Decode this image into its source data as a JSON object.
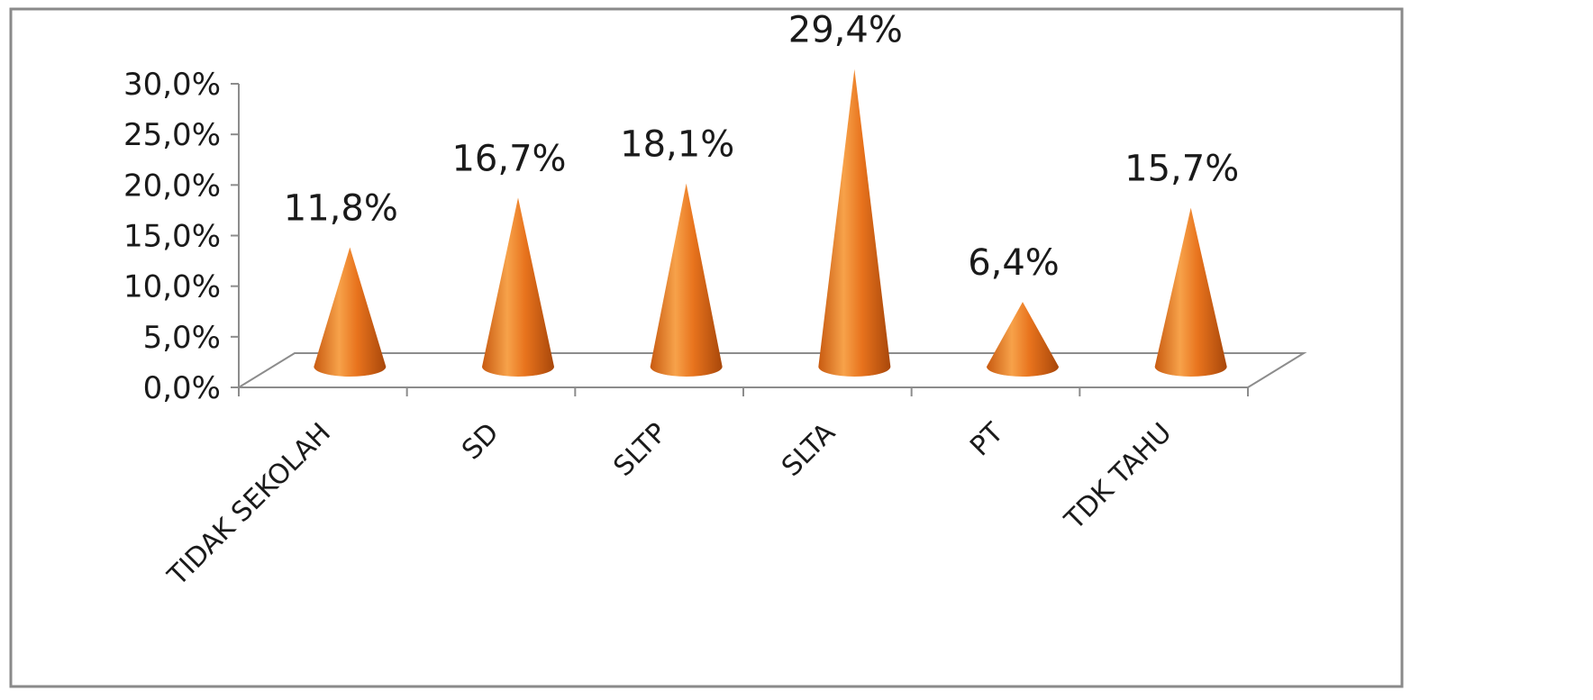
{
  "chart_data": {
    "type": "bar",
    "style": "3d-cone",
    "categories": [
      "TIDAK SEKOLAH",
      "SD",
      "SLTP",
      "SLTA",
      "PT",
      "TDK TAHU"
    ],
    "values": [
      11.8,
      16.7,
      18.1,
      29.4,
      6.4,
      15.7
    ],
    "data_labels": [
      "11,8%",
      "16,7%",
      "18,1%",
      "29,4%",
      "6,4%",
      "15,7%"
    ],
    "y_ticks": [
      "0,0%",
      "5,0%",
      "10,0%",
      "15,0%",
      "20,0%",
      "25,0%",
      "30,0%"
    ],
    "y_tick_values": [
      0,
      5,
      10,
      15,
      20,
      25,
      30
    ],
    "ylim": [
      0,
      30
    ],
    "xlabel": "",
    "ylabel": "",
    "grid": false,
    "legend": "none",
    "colors": {
      "cone_light": "#f6a650",
      "cone_mid": "#e8731d",
      "cone_dark": "#b54d0a",
      "axis": "#8c8c8c",
      "frame": "#8a8a8a",
      "text": "#1a1a1a"
    }
  }
}
